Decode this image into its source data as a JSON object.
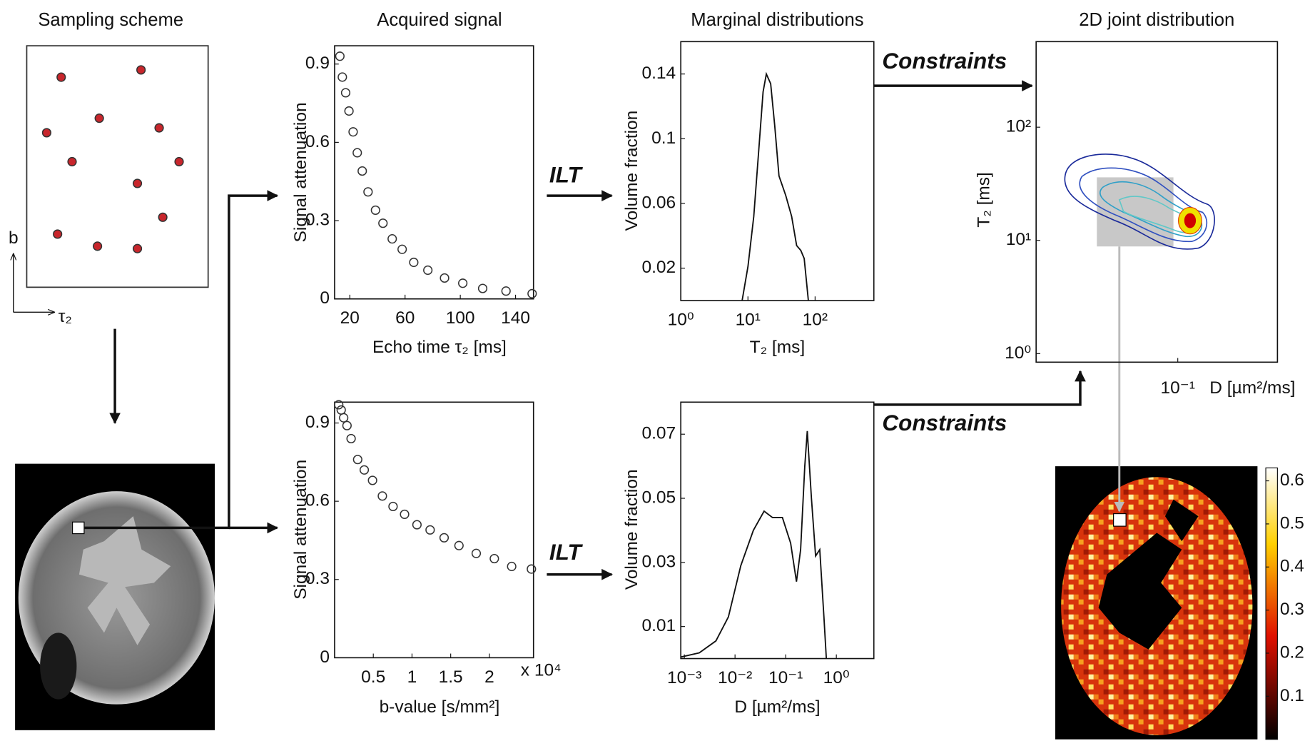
{
  "panel_titles": [
    "Sampling scheme",
    "Acquired signal",
    "Marginal distributions",
    "2D joint distribution"
  ],
  "annotations": {
    "ilt": [
      "ILT",
      "ILT"
    ],
    "constraints": [
      "Constraints",
      "Constraints"
    ]
  },
  "chart_data": [
    {
      "type": "scatter",
      "x_label": "τ₂",
      "y_label": "b",
      "marker": "filled",
      "color": "#c8262c",
      "x": [
        0.19,
        0.63,
        0.4,
        0.11,
        0.73,
        0.25,
        0.84,
        0.61,
        0.75,
        0.17,
        0.39,
        0.61
      ],
      "y": [
        0.87,
        0.9,
        0.7,
        0.64,
        0.66,
        0.52,
        0.52,
        0.43,
        0.29,
        0.22,
        0.17,
        0.16
      ],
      "xlim": [
        0,
        1
      ],
      "ylim": [
        0,
        1
      ]
    },
    {
      "type": "scatter",
      "x_label": "Echo time τ₂ [ms]",
      "y_label": "Signal attenuation",
      "marker": "open",
      "color": "#333333",
      "x": [
        12.8,
        14.6,
        17.0,
        19.4,
        22.4,
        25.4,
        29.0,
        33.2,
        38.6,
        44.0,
        50.7,
        57.9,
        66.3,
        76.5,
        88.6,
        101.8,
        116.2,
        133.1,
        152
      ],
      "y": [
        0.93,
        0.85,
        0.79,
        0.72,
        0.64,
        0.56,
        0.49,
        0.41,
        0.34,
        0.29,
        0.23,
        0.19,
        0.14,
        0.11,
        0.08,
        0.06,
        0.04,
        0.03,
        0.02
      ],
      "xlim": [
        9,
        153
      ],
      "ylim": [
        0,
        0.97
      ],
      "xticks": [
        20,
        60,
        100,
        140
      ],
      "yticks": [
        0,
        0.3,
        0.6,
        0.9
      ]
    },
    {
      "type": "scatter",
      "x_label": "b-value [s/mm²]",
      "y_label": "Signal attenuation",
      "x_multiplier": "x 10⁴",
      "marker": "open",
      "color": "#333333",
      "x": [
        530,
        850,
        1170,
        1600,
        2130,
        2980,
        3830,
        4900,
        6170,
        7550,
        9040,
        10640,
        12340,
        14150,
        16070,
        18300,
        20640,
        22880,
        25430
      ],
      "y": [
        0.97,
        0.95,
        0.92,
        0.89,
        0.84,
        0.76,
        0.72,
        0.68,
        0.62,
        0.58,
        0.55,
        0.51,
        0.49,
        0.46,
        0.43,
        0.4,
        0.38,
        0.35,
        0.34
      ],
      "xlim": [
        0,
        25700
      ],
      "ylim": [
        0,
        0.98
      ],
      "xticks": [
        {
          "value": 5000,
          "label": "0.5"
        },
        {
          "value": 10000,
          "label": "1"
        },
        {
          "value": 15000,
          "label": "1.5"
        },
        {
          "value": 20000,
          "label": "2"
        }
      ],
      "yticks": [
        0,
        0.3,
        0.6,
        0.9
      ]
    },
    {
      "type": "line",
      "x_label": "T₂ [ms]",
      "y_label": "Volume fraction",
      "x_scale": "log",
      "color": "#111111",
      "x": [
        8.2,
        10,
        12.2,
        14.5,
        16.8,
        18.8,
        21.8,
        25.1,
        29.0,
        36.5,
        44.7,
        53.1,
        61.3,
        68.8,
        79.4
      ],
      "y": [
        0,
        0.021,
        0.052,
        0.093,
        0.129,
        0.14,
        0.134,
        0.108,
        0.077,
        0.065,
        0.052,
        0.034,
        0.031,
        0.026,
        0
      ],
      "xlim": [
        1,
        750
      ],
      "ylim": [
        0,
        0.16
      ],
      "xticks": [
        {
          "value": 1,
          "label": "10⁰"
        },
        {
          "value": 10,
          "label": "10¹"
        },
        {
          "value": 100,
          "label": "10²"
        }
      ],
      "yticks": [
        0.02,
        0.06,
        0.1,
        0.14
      ]
    },
    {
      "type": "line",
      "x_label": "D [µm²/ms]",
      "y_label": "Volume fraction",
      "x_scale": "log",
      "color": "#111111",
      "x": [
        0.00086,
        0.00197,
        0.0042,
        0.0074,
        0.013,
        0.023,
        0.0375,
        0.055,
        0.086,
        0.125,
        0.163,
        0.197,
        0.238,
        0.267,
        0.322,
        0.389,
        0.47,
        0.568,
        0.635
      ],
      "y": [
        0.0005,
        0.0018,
        0.0055,
        0.013,
        0.029,
        0.04,
        0.046,
        0.044,
        0.044,
        0.036,
        0.024,
        0.034,
        0.06,
        0.071,
        0.05,
        0.032,
        0.034,
        0.013,
        0
      ],
      "xlim": [
        0.00085,
        5.5
      ],
      "ylim": [
        0,
        0.08
      ],
      "xticks": [
        {
          "value": 0.001,
          "label": "10⁻³"
        },
        {
          "value": 0.01,
          "label": "10⁻²"
        },
        {
          "value": 0.1,
          "label": "10⁻¹"
        },
        {
          "value": 1,
          "label": "10⁰"
        }
      ],
      "yticks": [
        0.01,
        0.03,
        0.05,
        0.07
      ]
    },
    {
      "type": "contour",
      "x_label": "D [µm²/ms]",
      "y_label": "T₂ [ms]",
      "x_scale": "log",
      "y_scale": "log",
      "xlim": [
        0.0056,
        0.76
      ],
      "ylim": [
        0.84,
        570
      ],
      "xticks": [
        {
          "value": 0.1,
          "label": "10⁻¹"
        }
      ],
      "yticks": [
        {
          "value": 1,
          "label": "10⁰"
        },
        {
          "value": 10,
          "label": "10¹"
        },
        {
          "value": 100,
          "label": "10²"
        }
      ]
    },
    {
      "type": "heatmap",
      "colormap": "hot",
      "clim": [
        0,
        0.63
      ],
      "cticks": [
        0.1,
        0.2,
        0.3,
        0.4,
        0.5,
        0.6
      ]
    }
  ]
}
